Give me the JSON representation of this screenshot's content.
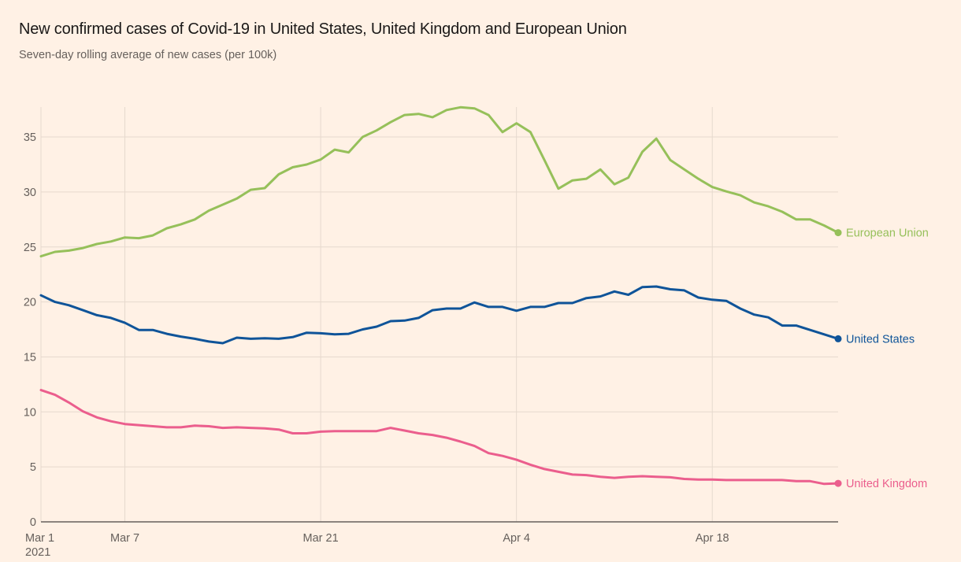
{
  "header": {
    "title": "New confirmed cases of Covid-19 in United States, United Kingdom and European Union",
    "subtitle": "Seven-day rolling average of new cases (per 100k)"
  },
  "chart_data": {
    "type": "line",
    "title": "New confirmed cases of Covid-19 in United States, United Kingdom and European Union",
    "subtitle": "Seven-day rolling average of new cases (per 100k)",
    "xlabel": "",
    "ylabel": "",
    "x_start": "2021-03-01",
    "x_end": "2021-04-27",
    "x_interval": "daily",
    "xticks": [
      {
        "day_index": 0,
        "label": "Mar 1",
        "sublabel": "2021"
      },
      {
        "day_index": 6,
        "label": "Mar 7",
        "sublabel": ""
      },
      {
        "day_index": 20,
        "label": "Mar 21",
        "sublabel": ""
      },
      {
        "day_index": 34,
        "label": "Apr 4",
        "sublabel": ""
      },
      {
        "day_index": 48,
        "label": "Apr 18",
        "sublabel": ""
      }
    ],
    "yticks": [
      0,
      5,
      10,
      15,
      20,
      25,
      30,
      35
    ],
    "ylim": [
      0,
      37.8
    ],
    "grid": true,
    "legend": "inline-right-end-labels",
    "series": [
      {
        "name": "European Union",
        "color": "#96c05a",
        "values": [
          24.15,
          24.55,
          24.67,
          24.9,
          25.27,
          25.5,
          25.86,
          25.8,
          26.05,
          26.7,
          27.05,
          27.5,
          28.3,
          28.85,
          29.4,
          30.2,
          30.35,
          31.6,
          32.25,
          32.5,
          32.95,
          33.85,
          33.6,
          35.0,
          35.6,
          36.35,
          37.0,
          37.1,
          36.8,
          37.45,
          37.7,
          37.6,
          37.0,
          35.45,
          36.25,
          35.45,
          32.9,
          30.3,
          31.05,
          31.2,
          32.05,
          30.7,
          31.3,
          33.65,
          34.85,
          32.9,
          32.05,
          31.2,
          30.45,
          30.05,
          29.7,
          29.05,
          28.7,
          28.2,
          27.5,
          27.5,
          26.95,
          26.3
        ]
      },
      {
        "name": "United States",
        "color": "#0f5499",
        "values": [
          20.6,
          20.0,
          19.7,
          19.25,
          18.8,
          18.55,
          18.1,
          17.45,
          17.45,
          17.1,
          16.85,
          16.65,
          16.4,
          16.25,
          16.75,
          16.65,
          16.7,
          16.65,
          16.8,
          17.2,
          17.15,
          17.05,
          17.1,
          17.5,
          17.75,
          18.25,
          18.3,
          18.55,
          19.25,
          19.4,
          19.4,
          19.95,
          19.55,
          19.55,
          19.2,
          19.55,
          19.55,
          19.9,
          19.9,
          20.35,
          20.5,
          20.95,
          20.65,
          21.35,
          21.4,
          21.15,
          21.05,
          20.4,
          20.2,
          20.1,
          19.4,
          18.85,
          18.6,
          17.85,
          17.85,
          17.45,
          17.05,
          16.65
        ]
      },
      {
        "name": "United Kingdom",
        "color": "#eb5e8d",
        "values": [
          11.98,
          11.55,
          10.85,
          10.05,
          9.5,
          9.15,
          8.9,
          8.8,
          8.7,
          8.6,
          8.6,
          8.75,
          8.7,
          8.55,
          8.6,
          8.55,
          8.5,
          8.4,
          8.05,
          8.05,
          8.2,
          8.25,
          8.25,
          8.25,
          8.25,
          8.55,
          8.3,
          8.05,
          7.9,
          7.65,
          7.3,
          6.9,
          6.25,
          6.0,
          5.65,
          5.2,
          4.8,
          4.55,
          4.3,
          4.25,
          4.1,
          4.0,
          4.1,
          4.15,
          4.1,
          4.05,
          3.9,
          3.85,
          3.85,
          3.8,
          3.8,
          3.8,
          3.8,
          3.8,
          3.7,
          3.7,
          3.45,
          3.5
        ]
      }
    ]
  },
  "colors": {
    "background": "#fff1e5",
    "grid": "#e6d9ce",
    "axis": "#66605c",
    "text": "#66605c"
  }
}
